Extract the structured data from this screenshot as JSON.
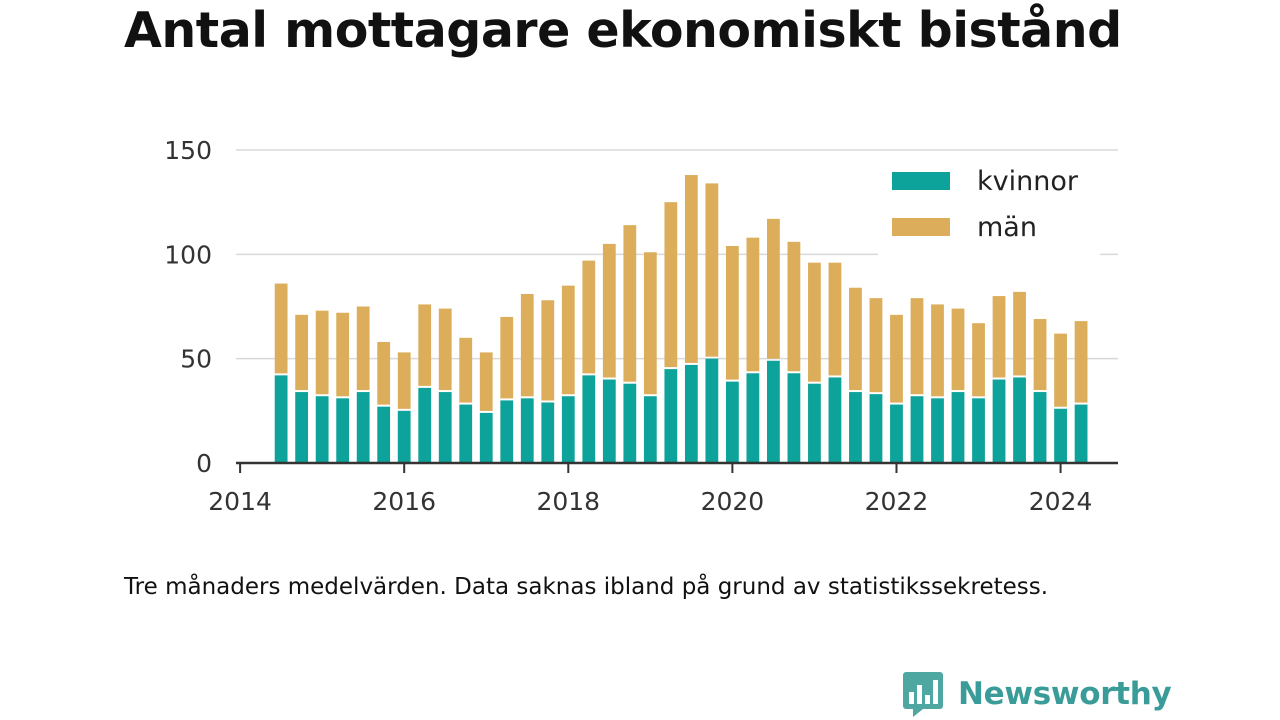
{
  "title": "Antal mottagare ekonomiskt bistånd",
  "footnote": "Tre månaders medelvärden. Data saknas ibland på grund av statistikssekretess.",
  "brand": {
    "name": "Newsworthy",
    "icon": "newsworthy-logo-icon",
    "color": "#3a9c98"
  },
  "colors": {
    "kvinnor": "#0ea39a",
    "man": "#dcae5c",
    "grid": "#d9d9d9",
    "axis": "#333333",
    "text": "#333333"
  },
  "chart_data": {
    "type": "bar",
    "stacked": true,
    "x_ticks": [
      "2014",
      "2016",
      "2018",
      "2020",
      "2022",
      "2024"
    ],
    "y_ticks": [
      "0",
      "50",
      "100",
      "150"
    ],
    "ylim": [
      0,
      150
    ],
    "x_tick_values": [
      2014,
      2016,
      2018,
      2020,
      2022,
      2024
    ],
    "xlim": [
      2013.95,
      2024.7
    ],
    "grid": true,
    "legend": "top-right",
    "x": [
      2014.5,
      2014.75,
      2015.0,
      2015.25,
      2015.5,
      2015.75,
      2016.0,
      2016.25,
      2016.5,
      2016.75,
      2017.0,
      2017.25,
      2017.5,
      2017.75,
      2018.0,
      2018.25,
      2018.5,
      2018.75,
      2019.0,
      2019.25,
      2019.5,
      2019.75,
      2020.0,
      2020.25,
      2020.5,
      2020.75,
      2021.0,
      2021.25,
      2021.5,
      2021.75,
      2022.0,
      2022.25,
      2022.5,
      2022.75,
      2023.0,
      2023.25,
      2023.5,
      2023.75,
      2024.0,
      2024.25
    ],
    "series": [
      {
        "name": "kvinnor",
        "values": [
          42,
          34,
          32,
          31,
          34,
          27,
          25,
          36,
          34,
          28,
          24,
          30,
          31,
          29,
          32,
          42,
          40,
          38,
          32,
          45,
          47,
          50,
          39,
          43,
          49,
          43,
          38,
          41,
          34,
          33,
          28,
          32,
          31,
          34,
          31,
          40,
          41,
          34,
          26,
          28
        ]
      },
      {
        "name": "män",
        "values": [
          44,
          37,
          41,
          41,
          41,
          31,
          28,
          40,
          40,
          32,
          29,
          40,
          50,
          49,
          53,
          55,
          65,
          76,
          69,
          80,
          91,
          84,
          65,
          65,
          68,
          63,
          58,
          55,
          50,
          46,
          43,
          47,
          45,
          40,
          36,
          40,
          41,
          35,
          36,
          40
        ]
      }
    ]
  }
}
